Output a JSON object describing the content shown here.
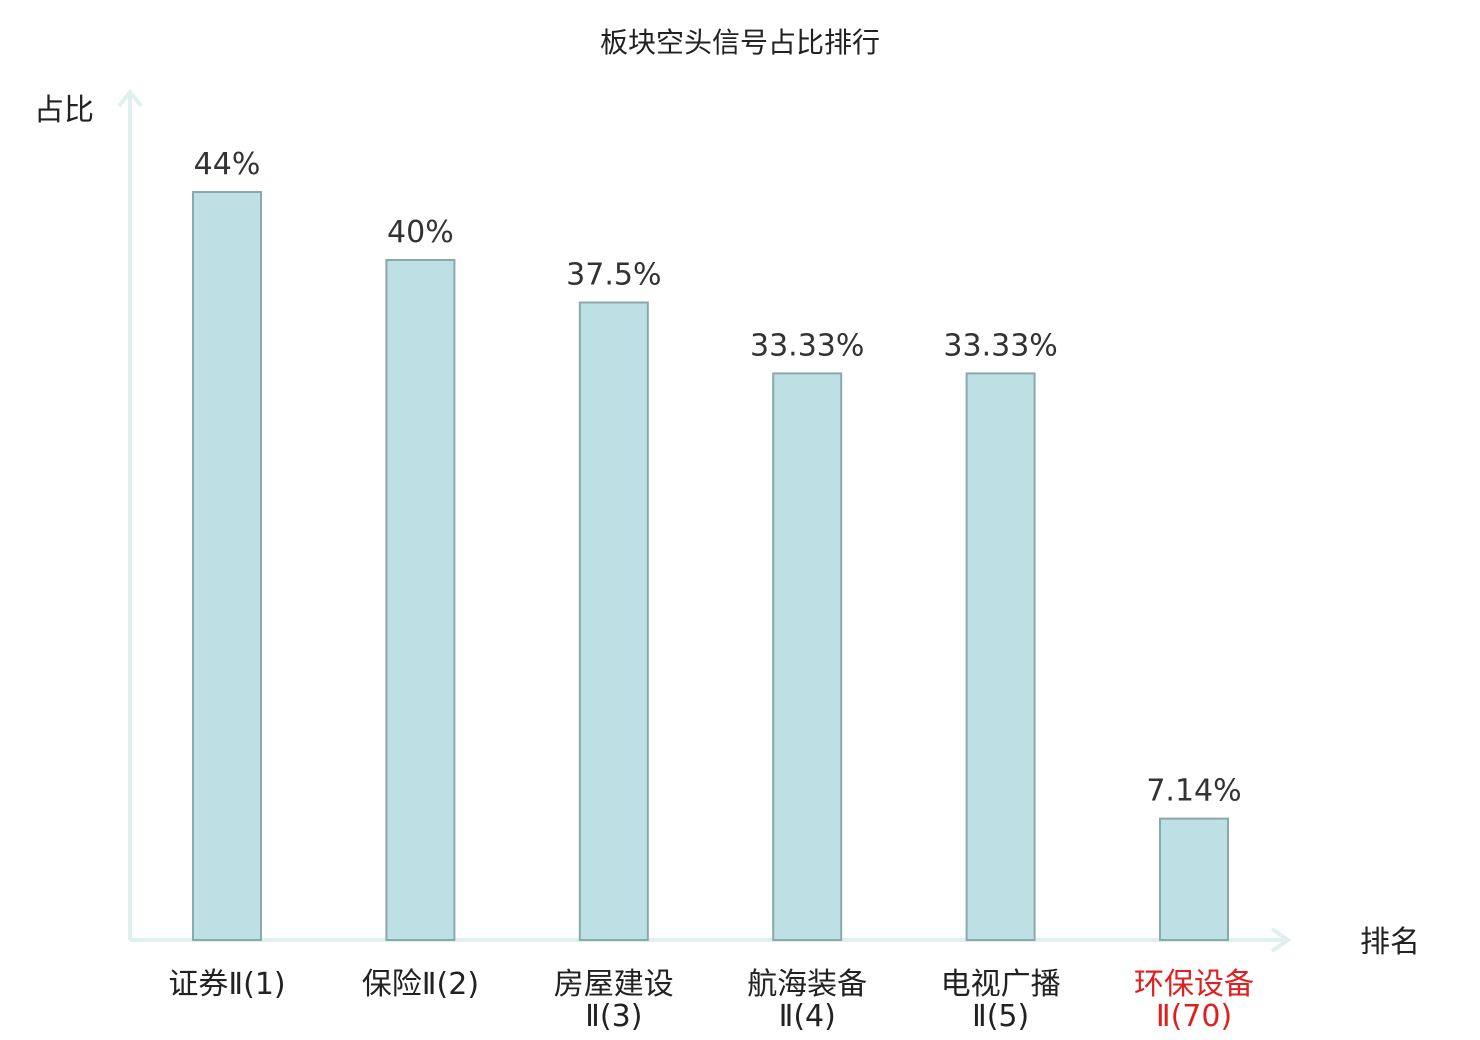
{
  "chart_data": {
    "type": "bar",
    "title": "板块空头信号占比排行",
    "ylabel": "占比",
    "xlabel": "排名",
    "ylim": [
      0,
      50
    ],
    "grid": false,
    "categories": [
      {
        "name": "证券",
        "rank": "Ⅱ(1)",
        "highlight": false
      },
      {
        "name": "保险",
        "rank": "Ⅱ(2)",
        "highlight": false
      },
      {
        "name": "房屋建设",
        "rank": "Ⅱ(3)",
        "highlight": false
      },
      {
        "name": "航海装备",
        "rank": "Ⅱ(4)",
        "highlight": false
      },
      {
        "name": "电视广播",
        "rank": "Ⅱ(5)",
        "highlight": false
      },
      {
        "name": "环保设备",
        "rank": "Ⅱ(70)",
        "highlight": true
      }
    ],
    "values": [
      44,
      40,
      37.5,
      33.33,
      33.33,
      7.14
    ],
    "value_labels": [
      "44%",
      "40%",
      "37.5%",
      "33.33%",
      "33.33%",
      "7.14%"
    ],
    "colors": {
      "bar_fill": "#bce0e3",
      "bar_stroke": "#8aa9ab",
      "axis": "#dff1ee",
      "highlight_text": "#e02020",
      "normal_text": "#222222"
    }
  }
}
